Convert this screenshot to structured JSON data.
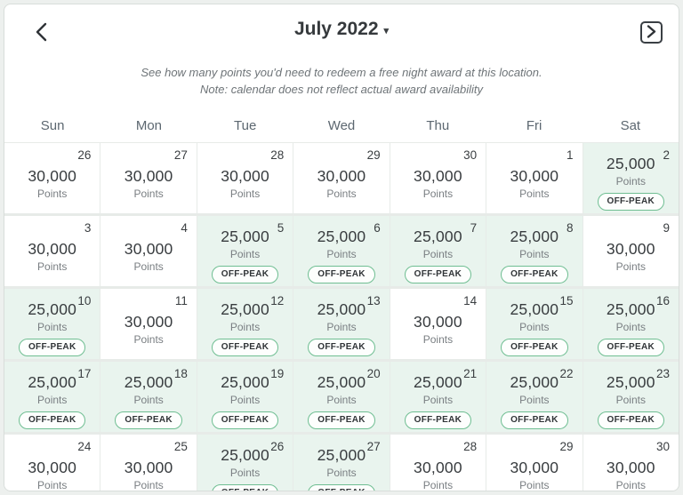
{
  "header": {
    "title": "July 2022",
    "caret_icon": "caret-down",
    "prev_icon": "chevron-left",
    "next_icon": "chevron-right"
  },
  "subtitle": "See how many points you'd need to redeem a free night award at this location. Note: calendar does not reflect actual award availability",
  "weekdays": [
    "Sun",
    "Mon",
    "Tue",
    "Wed",
    "Thu",
    "Fri",
    "Sat"
  ],
  "points_label": "Points",
  "badge_label": "OFF-PEAK",
  "colors": {
    "page_background": "#edf0ee",
    "card_background": "#ffffff",
    "card_border": "#d8ddda",
    "grid_line": "#e7ebe8",
    "offpeak_cell_background": "#e9f4ee",
    "offpeak_badge_border": "#6fbe92",
    "title_text": "#35393c",
    "subtitle_text": "#6e7478",
    "weekday_text": "#5c6770",
    "value_text": "#383c3f",
    "muted_text": "#797e82"
  },
  "days": [
    {
      "day": "26",
      "points": "30,000",
      "off_peak": false
    },
    {
      "day": "27",
      "points": "30,000",
      "off_peak": false
    },
    {
      "day": "28",
      "points": "30,000",
      "off_peak": false
    },
    {
      "day": "29",
      "points": "30,000",
      "off_peak": false
    },
    {
      "day": "30",
      "points": "30,000",
      "off_peak": false
    },
    {
      "day": "1",
      "points": "30,000",
      "off_peak": false
    },
    {
      "day": "2",
      "points": "25,000",
      "off_peak": true
    },
    {
      "day": "3",
      "points": "30,000",
      "off_peak": false
    },
    {
      "day": "4",
      "points": "30,000",
      "off_peak": false
    },
    {
      "day": "5",
      "points": "25,000",
      "off_peak": true
    },
    {
      "day": "6",
      "points": "25,000",
      "off_peak": true
    },
    {
      "day": "7",
      "points": "25,000",
      "off_peak": true
    },
    {
      "day": "8",
      "points": "25,000",
      "off_peak": true
    },
    {
      "day": "9",
      "points": "30,000",
      "off_peak": false
    },
    {
      "day": "10",
      "points": "25,000",
      "off_peak": true
    },
    {
      "day": "11",
      "points": "30,000",
      "off_peak": false
    },
    {
      "day": "12",
      "points": "25,000",
      "off_peak": true
    },
    {
      "day": "13",
      "points": "25,000",
      "off_peak": true
    },
    {
      "day": "14",
      "points": "30,000",
      "off_peak": false
    },
    {
      "day": "15",
      "points": "25,000",
      "off_peak": true
    },
    {
      "day": "16",
      "points": "25,000",
      "off_peak": true
    },
    {
      "day": "17",
      "points": "25,000",
      "off_peak": true
    },
    {
      "day": "18",
      "points": "25,000",
      "off_peak": true
    },
    {
      "day": "19",
      "points": "25,000",
      "off_peak": true
    },
    {
      "day": "20",
      "points": "25,000",
      "off_peak": true
    },
    {
      "day": "21",
      "points": "25,000",
      "off_peak": true
    },
    {
      "day": "22",
      "points": "25,000",
      "off_peak": true
    },
    {
      "day": "23",
      "points": "25,000",
      "off_peak": true
    },
    {
      "day": "24",
      "points": "30,000",
      "off_peak": false
    },
    {
      "day": "25",
      "points": "30,000",
      "off_peak": false
    },
    {
      "day": "26",
      "points": "25,000",
      "off_peak": true
    },
    {
      "day": "27",
      "points": "25,000",
      "off_peak": true
    },
    {
      "day": "28",
      "points": "30,000",
      "off_peak": false
    },
    {
      "day": "29",
      "points": "30,000",
      "off_peak": false
    },
    {
      "day": "30",
      "points": "30,000",
      "off_peak": false
    }
  ]
}
